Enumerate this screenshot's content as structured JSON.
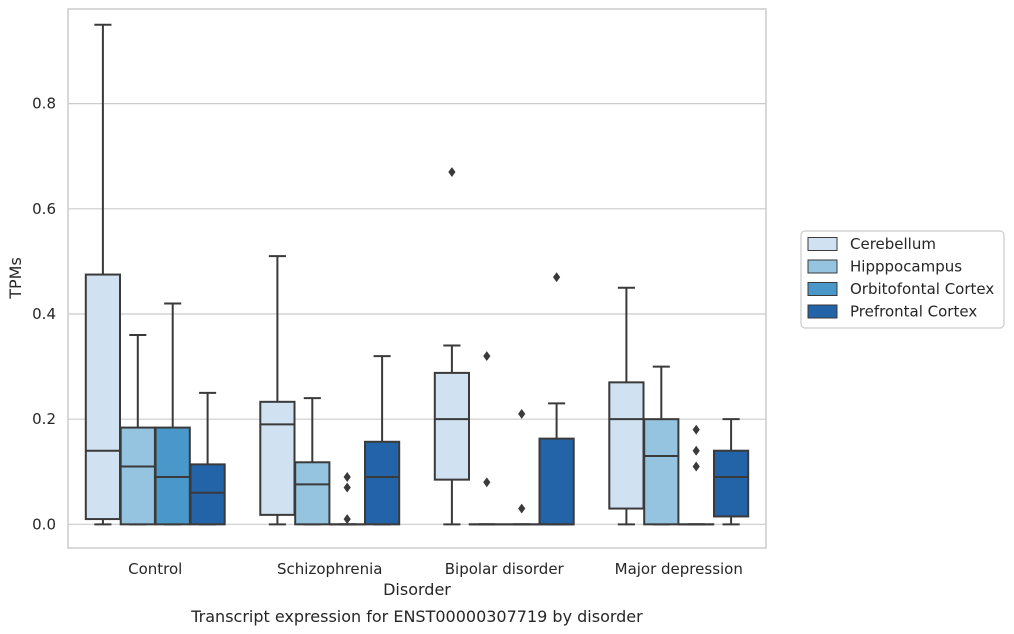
{
  "caption": "Transcript expression for ENST00000307719 by disorder",
  "colors": {
    "Cerebellum": "#d0e1f2",
    "Hipppocampus": "#94c4df",
    "Orbitofontal Cortex": "#4a98c9",
    "Prefrontal Cortex": "#2363a8",
    "edge": "#3a3a3a",
    "grid": "#cccccc",
    "frame": "#cccccc"
  },
  "chart_data": {
    "type": "boxplot",
    "xlabel": "Disorder",
    "ylabel": "TPMs",
    "ylim": [
      -0.045,
      0.98
    ],
    "yticks": [
      0.0,
      0.2,
      0.4,
      0.6,
      0.8
    ],
    "ytick_labels": [
      "0.0",
      "0.2",
      "0.4",
      "0.6",
      "0.8"
    ],
    "grid": true,
    "legend_position": "right",
    "categories": [
      "Control",
      "Schizophrenia",
      "Bipolar disorder",
      "Major depression"
    ],
    "series": [
      {
        "name": "Cerebellum",
        "boxes": [
          {
            "whislo": 0.0,
            "q1": 0.01,
            "med": 0.14,
            "q3": 0.475,
            "whishi": 0.95,
            "fliers": []
          },
          {
            "whislo": 0.0,
            "q1": 0.018,
            "med": 0.19,
            "q3": 0.233,
            "whishi": 0.51,
            "fliers": []
          },
          {
            "whislo": 0.0,
            "q1": 0.085,
            "med": 0.2,
            "q3": 0.288,
            "whishi": 0.34,
            "fliers": [
              0.67
            ]
          },
          {
            "whislo": 0.0,
            "q1": 0.03,
            "med": 0.2,
            "q3": 0.27,
            "whishi": 0.45,
            "fliers": []
          }
        ]
      },
      {
        "name": "Hipppocampus",
        "boxes": [
          {
            "whislo": 0.0,
            "q1": 0.0,
            "med": 0.11,
            "q3": 0.184,
            "whishi": 0.36,
            "fliers": []
          },
          {
            "whislo": 0.0,
            "q1": 0.0,
            "med": 0.076,
            "q3": 0.118,
            "whishi": 0.24,
            "fliers": []
          },
          {
            "whislo": 0.0,
            "q1": 0.0,
            "med": 0.0,
            "q3": 0.0,
            "whishi": 0.0,
            "fliers": [
              0.32,
              0.08
            ]
          },
          {
            "whislo": 0.0,
            "q1": 0.0,
            "med": 0.13,
            "q3": 0.2,
            "whishi": 0.3,
            "fliers": []
          }
        ]
      },
      {
        "name": "Orbitofontal Cortex",
        "boxes": [
          {
            "whislo": 0.0,
            "q1": 0.0,
            "med": 0.09,
            "q3": 0.184,
            "whishi": 0.42,
            "fliers": []
          },
          {
            "whislo": 0.0,
            "q1": 0.0,
            "med": 0.0,
            "q3": 0.0,
            "whishi": 0.0,
            "fliers": [
              0.09,
              0.07,
              0.01
            ]
          },
          {
            "whislo": 0.0,
            "q1": 0.0,
            "med": 0.0,
            "q3": 0.0,
            "whishi": 0.0,
            "fliers": [
              0.21,
              0.03
            ]
          },
          {
            "whislo": 0.0,
            "q1": 0.0,
            "med": 0.0,
            "q3": 0.0,
            "whishi": 0.0,
            "fliers": [
              0.18,
              0.14,
              0.11
            ]
          }
        ]
      },
      {
        "name": "Prefrontal Cortex",
        "boxes": [
          {
            "whislo": 0.0,
            "q1": 0.0,
            "med": 0.06,
            "q3": 0.114,
            "whishi": 0.25,
            "fliers": []
          },
          {
            "whislo": 0.0,
            "q1": 0.0,
            "med": 0.09,
            "q3": 0.157,
            "whishi": 0.32,
            "fliers": []
          },
          {
            "whislo": 0.0,
            "q1": 0.0,
            "med": 0.0,
            "q3": 0.163,
            "whishi": 0.23,
            "fliers": [
              0.47
            ]
          },
          {
            "whislo": 0.0,
            "q1": 0.015,
            "med": 0.09,
            "q3": 0.14,
            "whishi": 0.2,
            "fliers": []
          }
        ]
      }
    ]
  }
}
